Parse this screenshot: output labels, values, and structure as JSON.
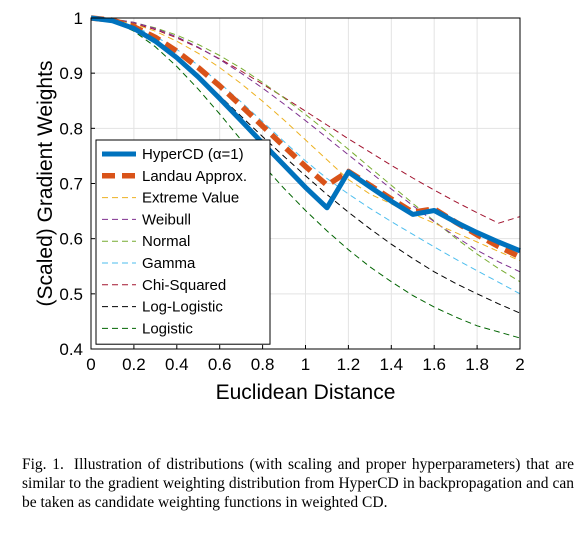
{
  "chart_data": {
    "type": "line",
    "xlabel": "Euclidean Distance",
    "ylabel": "(Scaled) Gradient Weights",
    "xlim": [
      0,
      2
    ],
    "ylim": [
      0.4,
      1
    ],
    "xticks": [
      "0",
      "0.2",
      "0.4",
      "0.6",
      "0.8",
      "1",
      "1.2",
      "1.4",
      "1.6",
      "1.8",
      "2"
    ],
    "yticks": [
      "0.4",
      "0.5",
      "0.6",
      "0.7",
      "0.8",
      "0.9",
      "1"
    ],
    "grid": true,
    "legend_position": "bottom-left",
    "x": [
      0,
      0.1,
      0.2,
      0.3,
      0.4,
      0.5,
      0.6,
      0.7,
      0.8,
      0.9,
      1.0,
      1.1,
      1.2,
      1.3,
      1.4,
      1.5,
      1.6,
      1.7,
      1.8,
      1.9,
      2.0
    ],
    "series": [
      {
        "name": "HyperCD (α=1)",
        "color": "#0072BD",
        "style": "solid-thick",
        "values": [
          1.0,
          0.995,
          0.981,
          0.958,
          0.928,
          0.893,
          0.854,
          0.814,
          0.773,
          0.733,
          0.693,
          0.656,
          0.721,
          0.694,
          0.668,
          0.644,
          0.651,
          0.63,
          0.611,
          0.594,
          0.578
        ]
      },
      {
        "name": "Landau Approx.",
        "color": "#D95319",
        "style": "dashed-thick",
        "values": [
          1.0,
          0.996,
          0.984,
          0.965,
          0.94,
          0.91,
          0.877,
          0.841,
          0.804,
          0.767,
          0.731,
          0.697,
          0.722,
          0.697,
          0.672,
          0.648,
          0.654,
          0.63,
          0.607,
          0.586,
          0.567
        ]
      },
      {
        "name": "Extreme Value",
        "color": "#EDB120",
        "style": "dashed",
        "values": [
          1.0,
          0.997,
          0.989,
          0.976,
          0.958,
          0.936,
          0.91,
          0.881,
          0.849,
          0.815,
          0.779,
          0.743,
          0.707,
          0.681,
          0.663,
          0.645,
          0.628,
          0.611,
          0.594,
          0.577,
          0.56
        ]
      },
      {
        "name": "Weibull",
        "color": "#7E2F8E",
        "style": "dashed",
        "values": [
          1.0,
          0.998,
          0.992,
          0.981,
          0.966,
          0.947,
          0.925,
          0.9,
          0.873,
          0.844,
          0.814,
          0.783,
          0.752,
          0.721,
          0.69,
          0.66,
          0.631,
          0.604,
          0.579,
          0.558,
          0.54
        ]
      },
      {
        "name": "Normal",
        "color": "#77AC30",
        "style": "dashed",
        "values": [
          1.0,
          0.998,
          0.992,
          0.982,
          0.969,
          0.952,
          0.932,
          0.909,
          0.883,
          0.855,
          0.825,
          0.794,
          0.762,
          0.729,
          0.697,
          0.664,
          0.632,
          0.601,
          0.572,
          0.546,
          0.522
        ]
      },
      {
        "name": "Gamma",
        "color": "#4DBEEE",
        "style": "dashed",
        "values": [
          1.0,
          0.996,
          0.985,
          0.967,
          0.943,
          0.914,
          0.882,
          0.848,
          0.812,
          0.776,
          0.741,
          0.709,
          0.681,
          0.655,
          0.631,
          0.608,
          0.585,
          0.563,
          0.542,
          0.521,
          0.5
        ]
      },
      {
        "name": "Chi-Squared",
        "color": "#A2142F",
        "style": "dashed",
        "values": [
          1.0,
          0.997,
          0.99,
          0.979,
          0.964,
          0.946,
          0.926,
          0.904,
          0.88,
          0.856,
          0.831,
          0.806,
          0.781,
          0.757,
          0.733,
          0.71,
          0.688,
          0.667,
          0.647,
          0.628,
          0.64
        ]
      },
      {
        "name": "Log-Logistic",
        "color": "#000000",
        "style": "dashed",
        "values": [
          1.0,
          0.995,
          0.98,
          0.957,
          0.928,
          0.895,
          0.859,
          0.822,
          0.785,
          0.749,
          0.714,
          0.68,
          0.648,
          0.618,
          0.59,
          0.564,
          0.54,
          0.519,
          0.5,
          0.482,
          0.465
        ]
      },
      {
        "name": "Logistic",
        "color": "#006400",
        "style": "dashed",
        "values": [
          1.0,
          0.994,
          0.976,
          0.948,
          0.912,
          0.871,
          0.826,
          0.779,
          0.734,
          0.691,
          0.651,
          0.614,
          0.58,
          0.549,
          0.522,
          0.497,
          0.476,
          0.458,
          0.442,
          0.431,
          0.42
        ]
      }
    ]
  },
  "caption": {
    "label": "Fig. 1.",
    "text": "Illustration of distributions (with scaling and proper hyperparameters) that are similar to the gradient weighting distribution from HyperCD in backpropagation and can be taken as candidate weighting functions in weighted CD."
  }
}
